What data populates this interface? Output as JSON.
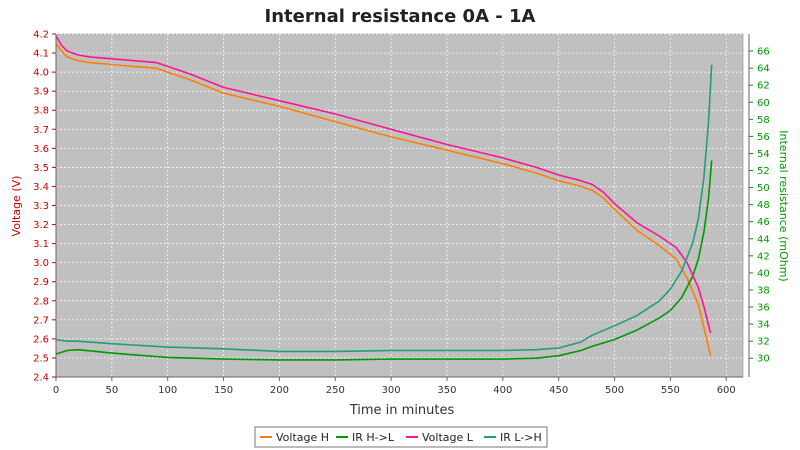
{
  "chart_data": {
    "type": "line",
    "title": "Internal resistance  0A - 1A",
    "xlabel": "Time in minutes",
    "ylabel_left": "Voltage (V)",
    "ylabel_right": "Internal resistance (mOhm)",
    "xlim": [
      0,
      615
    ],
    "ylim_left": [
      2.4,
      4.2
    ],
    "ylim_right": [
      27.8,
      68.0
    ],
    "x_ticks": [
      0,
      50,
      100,
      150,
      200,
      250,
      300,
      350,
      400,
      450,
      500,
      550,
      600
    ],
    "y_ticks_left": [
      "2.4",
      "2.5",
      "2.6",
      "2.7",
      "2.8",
      "2.9",
      "3.0",
      "3.1",
      "3.2",
      "3.3",
      "3.4",
      "3.5",
      "3.6",
      "3.7",
      "3.8",
      "3.9",
      "4.0",
      "4.1",
      "4.2"
    ],
    "y_ticks_right": [
      "30",
      "32",
      "34",
      "36",
      "38",
      "40",
      "42",
      "44",
      "46",
      "48",
      "50",
      "52",
      "54",
      "56",
      "58",
      "60",
      "62",
      "64",
      "66"
    ],
    "grid": true,
    "legend_position": "bottom",
    "colors": {
      "plot_background": "#c0c0c0",
      "left_axis": "#cc0000",
      "right_axis": "#009900"
    },
    "series": [
      {
        "name": "Voltage H",
        "axis": "left",
        "color": "#ff7f00",
        "x": [
          0,
          5,
          10,
          20,
          30,
          50,
          70,
          90,
          100,
          120,
          150,
          200,
          250,
          300,
          350,
          400,
          430,
          450,
          470,
          480,
          490,
          500,
          520,
          540,
          555,
          565,
          575,
          580,
          586
        ],
        "y": [
          4.15,
          4.11,
          4.08,
          4.06,
          4.05,
          4.04,
          4.03,
          4.02,
          4.0,
          3.96,
          3.89,
          3.82,
          3.74,
          3.66,
          3.59,
          3.52,
          3.47,
          3.43,
          3.4,
          3.38,
          3.34,
          3.28,
          3.17,
          3.09,
          3.02,
          2.92,
          2.78,
          2.66,
          2.51
        ]
      },
      {
        "name": "IR H->L",
        "axis": "right",
        "color": "#009900",
        "x": [
          0,
          10,
          20,
          50,
          100,
          150,
          200,
          250,
          300,
          350,
          400,
          430,
          450,
          470,
          480,
          500,
          520,
          540,
          550,
          560,
          570,
          575,
          580,
          584,
          587
        ],
        "y": [
          30.5,
          30.9,
          31.0,
          30.6,
          30.1,
          29.9,
          29.8,
          29.8,
          29.9,
          29.9,
          29.9,
          30.0,
          30.3,
          30.9,
          31.4,
          32.2,
          33.3,
          34.7,
          35.6,
          37.1,
          39.6,
          41.6,
          44.8,
          48.6,
          53.2
        ]
      },
      {
        "name": "Voltage L",
        "axis": "left",
        "color": "#ff1493",
        "x": [
          0,
          5,
          10,
          20,
          30,
          50,
          70,
          90,
          100,
          120,
          150,
          200,
          250,
          300,
          350,
          400,
          430,
          450,
          470,
          480,
          490,
          500,
          520,
          540,
          555,
          565,
          575,
          580,
          586
        ],
        "y": [
          4.19,
          4.14,
          4.11,
          4.09,
          4.08,
          4.07,
          4.06,
          4.05,
          4.03,
          3.99,
          3.92,
          3.85,
          3.78,
          3.7,
          3.62,
          3.55,
          3.5,
          3.46,
          3.43,
          3.41,
          3.37,
          3.31,
          3.21,
          3.14,
          3.08,
          3.0,
          2.87,
          2.77,
          2.63
        ]
      },
      {
        "name": "IR L->H",
        "axis": "right",
        "color": "#1f9e7a",
        "x": [
          0,
          10,
          20,
          50,
          100,
          150,
          200,
          250,
          300,
          350,
          400,
          430,
          450,
          470,
          480,
          500,
          520,
          540,
          550,
          560,
          570,
          575,
          580,
          584,
          587
        ],
        "y": [
          32.2,
          32.0,
          32.0,
          31.7,
          31.3,
          31.1,
          30.8,
          30.8,
          30.9,
          30.9,
          30.9,
          31.0,
          31.2,
          31.9,
          32.7,
          33.8,
          35.0,
          36.7,
          38.1,
          40.2,
          43.5,
          46.3,
          51.2,
          57.5,
          64.4
        ]
      }
    ]
  }
}
